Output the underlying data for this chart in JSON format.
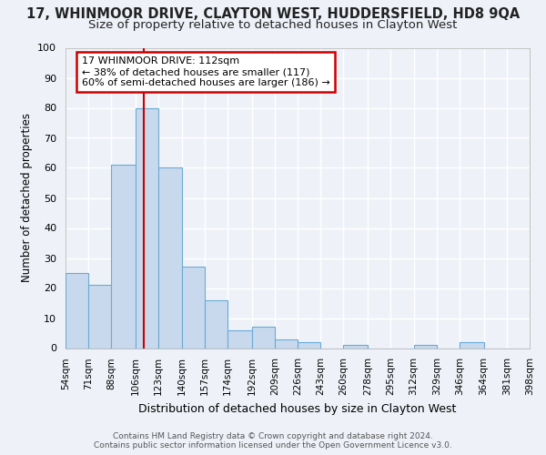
{
  "title": "17, WHINMOOR DRIVE, CLAYTON WEST, HUDDERSFIELD, HD8 9QA",
  "subtitle": "Size of property relative to detached houses in Clayton West",
  "xlabel": "Distribution of detached houses by size in Clayton West",
  "ylabel": "Number of detached properties",
  "bin_edges": [
    54,
    71,
    88,
    106,
    123,
    140,
    157,
    174,
    192,
    209,
    226,
    243,
    260,
    278,
    295,
    312,
    329,
    346,
    364,
    381,
    398
  ],
  "bar_heights": [
    25,
    21,
    61,
    80,
    60,
    27,
    16,
    6,
    7,
    3,
    2,
    0,
    1,
    0,
    0,
    1,
    0,
    2,
    0,
    0
  ],
  "bar_color": "#c8d9ee",
  "bar_edge_color": "#6aaad4",
  "vline_x": 112,
  "vline_color": "#cc0000",
  "annotation_title": "17 WHINMOOR DRIVE: 112sqm",
  "annotation_line1": "← 38% of detached houses are smaller (117)",
  "annotation_line2": "60% of semi-detached houses are larger (186) →",
  "annotation_box_color": "#cc0000",
  "ylim": [
    0,
    100
  ],
  "yticks": [
    0,
    10,
    20,
    30,
    40,
    50,
    60,
    70,
    80,
    90,
    100
  ],
  "footer_line1": "Contains HM Land Registry data © Crown copyright and database right 2024.",
  "footer_line2": "Contains public sector information licensed under the Open Government Licence v3.0.",
  "background_color": "#eef2f8",
  "grid_color": "#ffffff",
  "title_fontsize": 10.5,
  "subtitle_fontsize": 9.5
}
